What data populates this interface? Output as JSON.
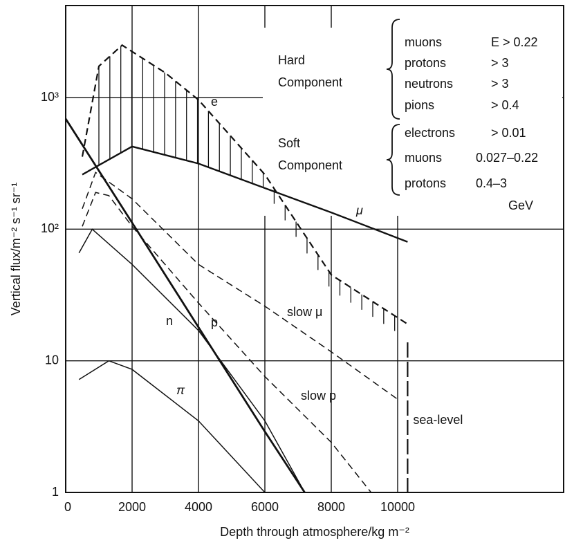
{
  "chart_data": {
    "type": "line",
    "x_label": "Depth through atmosphere/kg m⁻²",
    "y_label": "Vertical flux/m⁻² s⁻¹ sr⁻¹",
    "xlim": [
      0,
      15000
    ],
    "ylim": [
      1,
      5000
    ],
    "ylog": true,
    "grid": true,
    "xticks": [
      0,
      2000,
      4000,
      6000,
      8000,
      10000
    ],
    "yticks": [
      1,
      10,
      {
        "value": 100,
        "label": "10²"
      },
      {
        "value": 1000,
        "label": "10³"
      }
    ],
    "series": [
      {
        "name": "e",
        "color": "#111111",
        "line_style": "dashed",
        "x": [
          500,
          1000,
          1700,
          3000,
          4000,
          6000,
          8000,
          10300
        ],
        "values": [
          355,
          1730,
          2500,
          1540,
          960,
          260,
          45,
          19
        ]
      },
      {
        "name": "μ",
        "color": "#111111",
        "line_style": "solid",
        "x": [
          500,
          2000,
          4000,
          6000,
          8000,
          10300
        ],
        "values": [
          260,
          425,
          315,
          205,
          134,
          80
        ]
      },
      {
        "name": "n",
        "color": "#111111",
        "line_style": "solid",
        "x": [
          400,
          800,
          2000,
          4000,
          6000,
          7200
        ],
        "values": [
          66,
          100,
          54,
          17,
          3.5,
          1
        ]
      },
      {
        "name": "p",
        "color": "#111111",
        "line_style": "solid",
        "x": [
          0,
          2000,
          4000,
          6000,
          7200
        ],
        "values": [
          690,
          112,
          18,
          2.9,
          1
        ]
      },
      {
        "name": "π",
        "color": "#111111",
        "line_style": "solid",
        "x": [
          400,
          1300,
          2000,
          4000,
          6000
        ],
        "values": [
          7.2,
          10,
          8.6,
          3.5,
          1
        ]
      },
      {
        "name": "slow μ",
        "color": "#111111",
        "line_style": "dashed",
        "x": [
          500,
          900,
          2000,
          4000,
          6000,
          8000,
          10000
        ],
        "values": [
          143,
          270,
          170,
          54,
          26,
          11.7,
          5.1
        ]
      },
      {
        "name": "slow p",
        "color": "#111111",
        "line_style": "dashed",
        "x": [
          500,
          900,
          1300,
          2000,
          4000,
          6000,
          8000,
          9200
        ],
        "values": [
          105,
          190,
          180,
          105,
          27.5,
          7.6,
          2.4,
          1
        ]
      }
    ],
    "sea_level": {
      "text": "sea-level",
      "x": 10300
    },
    "components": [
      {
        "name_lines": [
          "Hard",
          "Component"
        ],
        "items": [
          [
            "muons",
            "E > 0.22"
          ],
          [
            "protons",
            "> 3"
          ],
          [
            "neutrons",
            "> 3"
          ],
          [
            "pions",
            "> 0.4"
          ]
        ]
      },
      {
        "name_lines": [
          "Soft",
          "Component"
        ],
        "items": [
          [
            "electrons",
            "> 0.01"
          ],
          [
            "muons",
            "0.027–0.22"
          ],
          [
            "protons",
            "0.4–3"
          ]
        ]
      }
    ],
    "unit": "GeV"
  }
}
